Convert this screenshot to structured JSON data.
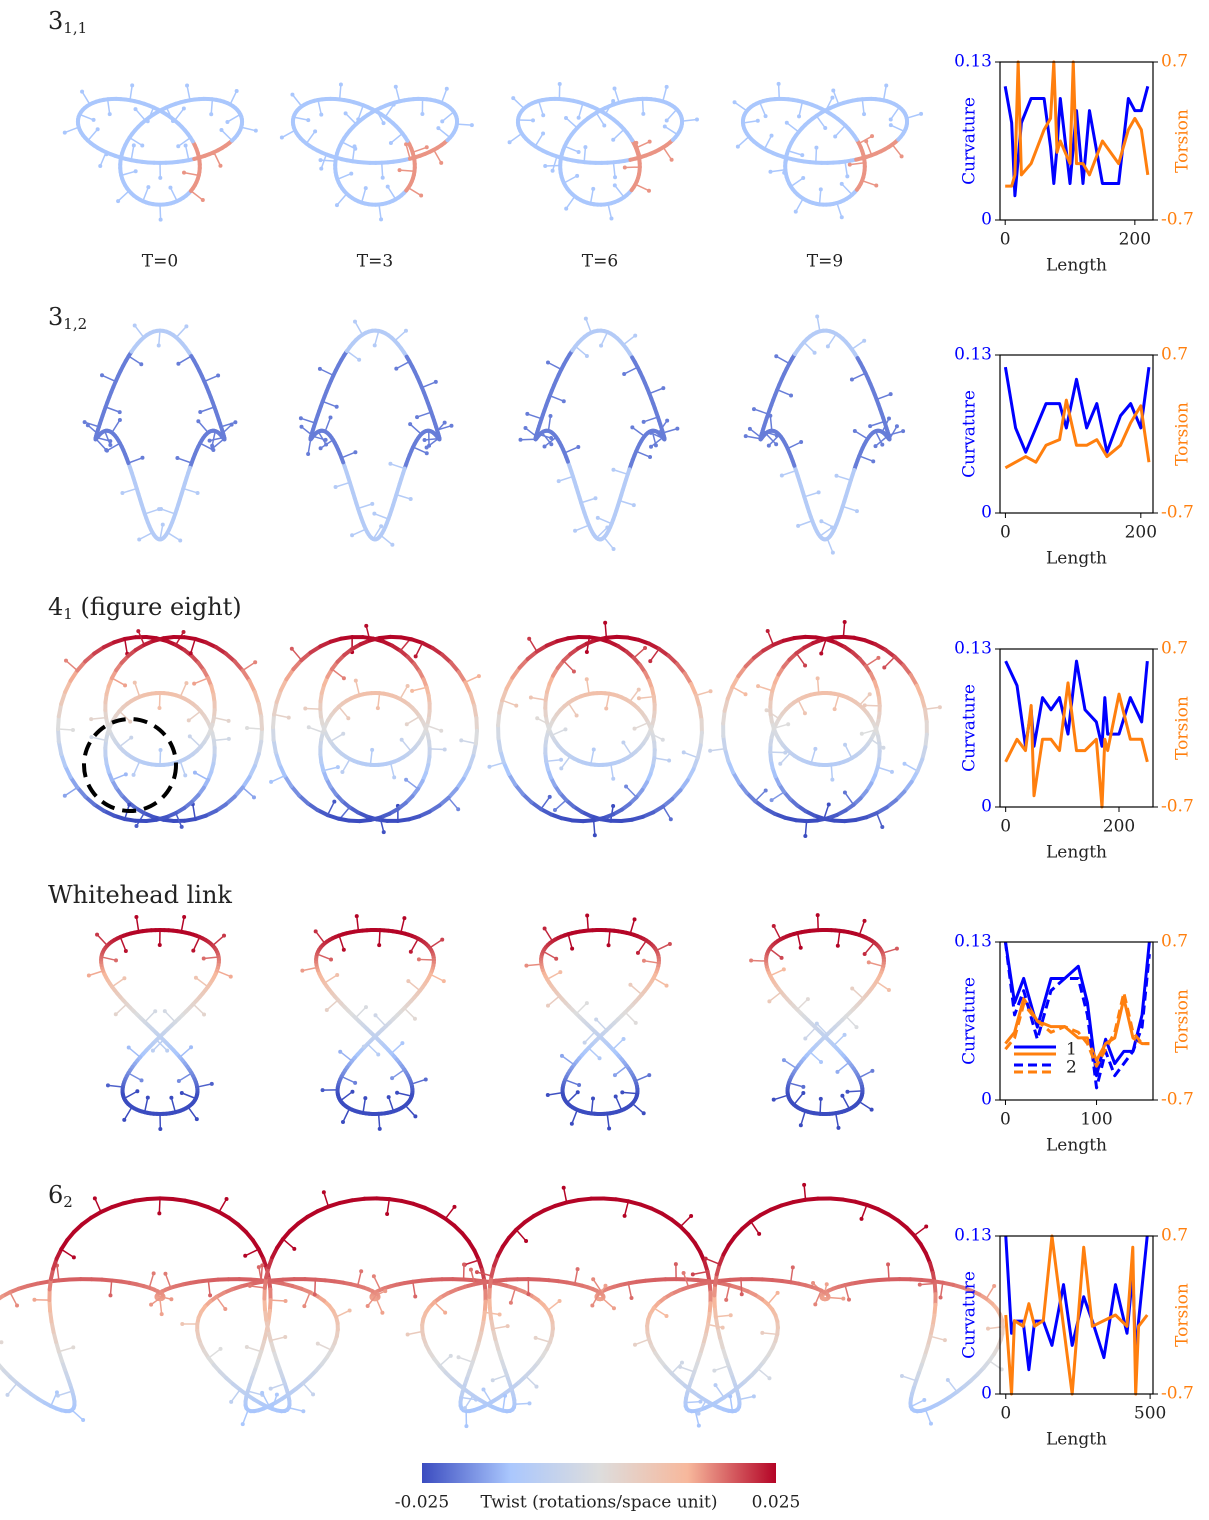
{
  "time_labels": [
    "T=0",
    "T=3",
    "T=6",
    "T=9"
  ],
  "chart_data": [
    {
      "type": "line",
      "title": "3",
      "title_subscript": "1,1",
      "xlabel": "Length",
      "ylabel": "Curvature",
      "y2label": "Torsion",
      "xlim": [
        -8,
        228
      ],
      "xticks": [
        0,
        200
      ],
      "ylim": [
        0,
        0.13
      ],
      "yticks": [
        0,
        0.13
      ],
      "y2lim": [
        -0.7,
        0.7
      ],
      "y2ticks": [
        -0.7,
        0.7
      ],
      "x": [
        0,
        10,
        15,
        20,
        25,
        40,
        60,
        70,
        75,
        80,
        85,
        100,
        105,
        110,
        120,
        130,
        150,
        175,
        190,
        200,
        210,
        220
      ],
      "series": [
        {
          "color": "#0000ff",
          "values": [
            0.11,
            0.08,
            0.02,
            0.05,
            0.08,
            0.1,
            0.1,
            0.06,
            0.03,
            0.06,
            0.1,
            0.03,
            0.06,
            0.09,
            0.03,
            0.09,
            0.03,
            0.03,
            0.1,
            0.09,
            0.09,
            0.11
          ]
        },
        {
          "color": "#ff7f0e",
          "axis": "y2",
          "values": [
            -0.4,
            -0.4,
            -0.3,
            0.7,
            -0.3,
            -0.2,
            0.1,
            0.2,
            0.7,
            -0.1,
            0.0,
            -0.2,
            0.7,
            -0.2,
            -0.2,
            -0.3,
            0.0,
            -0.2,
            0.1,
            0.2,
            0.1,
            -0.3
          ]
        }
      ]
    },
    {
      "type": "line",
      "title": "3",
      "title_subscript": "1,2",
      "xlabel": "Length",
      "ylabel": "Curvature",
      "y2label": "Torsion",
      "xlim": [
        -8,
        218
      ],
      "xticks": [
        0,
        200
      ],
      "ylim": [
        0,
        0.13
      ],
      "yticks": [
        0,
        0.13
      ],
      "y2lim": [
        -0.7,
        0.7
      ],
      "y2ticks": [
        -0.7,
        0.7
      ],
      "x": [
        0,
        15,
        30,
        45,
        60,
        80,
        90,
        105,
        120,
        135,
        150,
        170,
        185,
        200,
        212
      ],
      "series": [
        {
          "color": "#0000ff",
          "values": [
            0.12,
            0.07,
            0.05,
            0.07,
            0.09,
            0.09,
            0.07,
            0.11,
            0.07,
            0.09,
            0.05,
            0.08,
            0.09,
            0.07,
            0.12
          ]
        },
        {
          "color": "#ff7f0e",
          "axis": "y2",
          "values": [
            -0.3,
            -0.25,
            -0.2,
            -0.25,
            -0.1,
            -0.05,
            0.3,
            -0.1,
            -0.1,
            -0.05,
            -0.2,
            -0.1,
            0.1,
            0.25,
            -0.25
          ]
        }
      ]
    },
    {
      "type": "line",
      "title": "4",
      "title_subscript": "1",
      "title_suffix": " (figure eight)",
      "xlabel": "Length",
      "ylabel": "Curvature",
      "y2label": "Torsion",
      "xlim": [
        -10,
        260
      ],
      "xticks": [
        0,
        200
      ],
      "ylim": [
        0,
        0.13
      ],
      "yticks": [
        0,
        0.13
      ],
      "y2lim": [
        -0.7,
        0.7
      ],
      "y2ticks": [
        -0.7,
        0.7
      ],
      "x": [
        0,
        20,
        35,
        45,
        50,
        65,
        80,
        95,
        110,
        125,
        140,
        160,
        170,
        175,
        180,
        200,
        220,
        240,
        250
      ],
      "series": [
        {
          "color": "#0000ff",
          "values": [
            0.12,
            0.1,
            0.05,
            0.08,
            0.05,
            0.09,
            0.08,
            0.09,
            0.06,
            0.12,
            0.08,
            0.07,
            0.05,
            0.09,
            0.06,
            0.06,
            0.09,
            0.07,
            0.12
          ]
        },
        {
          "color": "#ff7f0e",
          "axis": "y2",
          "values": [
            -0.3,
            -0.1,
            -0.2,
            0.2,
            -0.6,
            -0.1,
            -0.1,
            -0.2,
            0.4,
            -0.2,
            -0.2,
            -0.1,
            -0.7,
            -0.1,
            -0.2,
            0.3,
            -0.1,
            -0.1,
            -0.3
          ]
        }
      ]
    },
    {
      "type": "line",
      "title": "Whitehead link",
      "xlabel": "Length",
      "ylabel": "Curvature",
      "y2label": "Torsion",
      "xlim": [
        -6,
        162
      ],
      "xticks": [
        0,
        100
      ],
      "ylim": [
        0,
        0.13
      ],
      "yticks": [
        0,
        0.13
      ],
      "y2lim": [
        -0.7,
        0.7
      ],
      "y2ticks": [
        -0.7,
        0.7
      ],
      "x": [
        0,
        10,
        20,
        35,
        50,
        65,
        80,
        90,
        100,
        110,
        120,
        130,
        140,
        150,
        158
      ],
      "series": [
        {
          "name": "1",
          "color": "#0000ff",
          "values": [
            0.13,
            0.08,
            0.1,
            0.06,
            0.1,
            0.1,
            0.11,
            0.08,
            0.02,
            0.05,
            0.03,
            0.04,
            0.04,
            0.07,
            0.13
          ]
        },
        {
          "color": "#ff7f0e",
          "axis": "y2",
          "values": [
            -0.2,
            -0.1,
            0.2,
            0.0,
            -0.05,
            -0.05,
            -0.15,
            -0.15,
            -0.35,
            -0.2,
            -0.15,
            0.2,
            -0.15,
            -0.2,
            -0.2
          ]
        },
        {
          "name": "2",
          "color": "#0000ff",
          "dashed": true,
          "values": [
            0.13,
            0.07,
            0.09,
            0.05,
            0.09,
            0.1,
            0.1,
            0.07,
            0.01,
            0.04,
            0.02,
            0.03,
            0.04,
            0.06,
            0.12
          ]
        },
        {
          "color": "#ff7f0e",
          "axis": "y2",
          "dashed": true,
          "values": [
            -0.25,
            -0.15,
            0.15,
            0.0,
            -0.1,
            -0.05,
            -0.1,
            -0.2,
            -0.4,
            -0.25,
            -0.1,
            0.25,
            -0.1,
            -0.2,
            -0.2
          ]
        }
      ],
      "legend": "lower left"
    },
    {
      "type": "line",
      "title": "6",
      "title_subscript": "2",
      "xlabel": "Length",
      "ylabel": "Curvature",
      "y2label": "Torsion",
      "xlim": [
        -20,
        510
      ],
      "xticks": [
        0,
        500
      ],
      "ylim": [
        0,
        0.13
      ],
      "yticks": [
        0,
        0.13
      ],
      "y2lim": [
        -0.7,
        0.7
      ],
      "y2ticks": [
        -0.7,
        0.7
      ],
      "x": [
        0,
        20,
        30,
        60,
        80,
        100,
        130,
        160,
        200,
        230,
        250,
        270,
        300,
        340,
        380,
        420,
        440,
        450,
        460,
        490
      ],
      "series": [
        {
          "color": "#0000ff",
          "values": [
            0.13,
            0.05,
            0.06,
            0.06,
            0.02,
            0.06,
            0.06,
            0.04,
            0.09,
            0.04,
            0.06,
            0.08,
            0.06,
            0.03,
            0.09,
            0.05,
            0.1,
            0.03,
            0.06,
            0.13
          ]
        },
        {
          "color": "#ff7f0e",
          "axis": "y2",
          "values": [
            0.0,
            -0.7,
            -0.05,
            -0.1,
            0.1,
            -0.1,
            -0.05,
            0.7,
            -0.1,
            -0.7,
            -0.05,
            0.6,
            -0.1,
            -0.05,
            0.0,
            -0.1,
            0.6,
            -0.7,
            -0.1,
            0.0
          ]
        }
      ]
    },
    {
      "type": "colorbar",
      "xlabel": "Twist (rotations/space unit)",
      "xlim": [
        -0.025,
        0.025
      ],
      "xticks": [
        -0.025,
        0.025
      ],
      "colors": [
        "#3b4cc0",
        "#aac7fd",
        "#dddddd",
        "#f7b89c",
        "#b40426"
      ]
    }
  ]
}
